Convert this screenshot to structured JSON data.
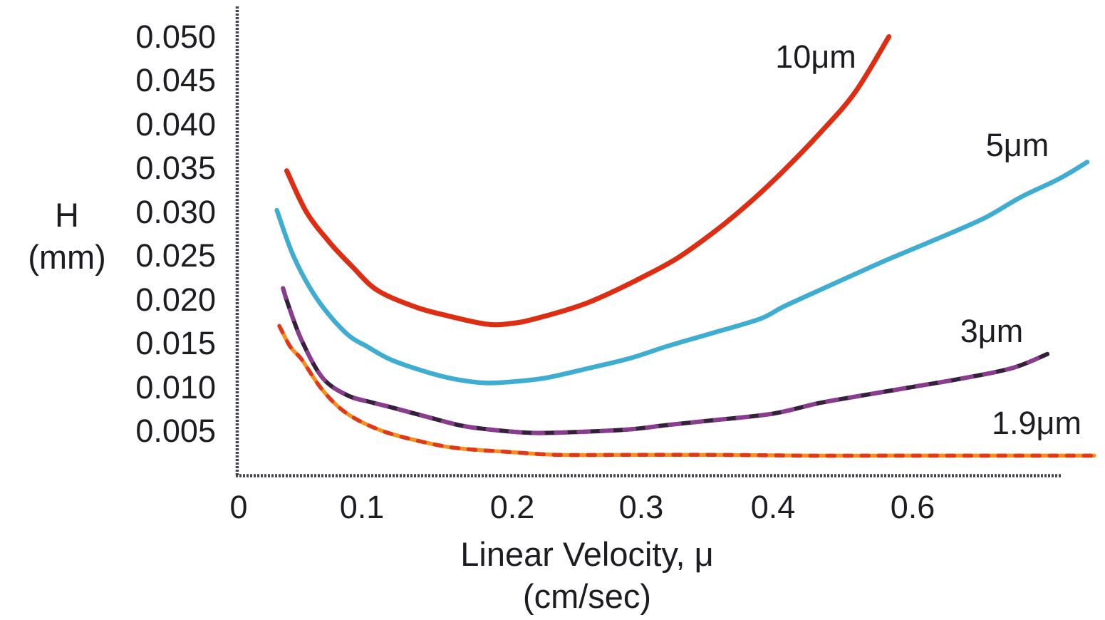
{
  "chart": {
    "y_axis_title_line1": "H",
    "y_axis_title_line2": "(mm)",
    "x_axis_title_line1": "Linear Velocity, μ",
    "x_axis_title_line2": "(cm/sec)",
    "y_tick_labels": [
      "0.050",
      "0.045",
      "0.040",
      "0.035",
      "0.030",
      "0.025",
      "0.020",
      "0.015",
      "0.010",
      "0.005"
    ],
    "x_tick_labels": [
      "0",
      "0.1",
      "0.2",
      "0.3",
      "0.4",
      "0.6"
    ]
  },
  "colors": {
    "background": "#ffffff",
    "text": "#1c1c22",
    "axis": "#46434e",
    "curve_10um": "#dd2d13",
    "curve_5um": "#3fadd2",
    "curve_3um": "#35203c",
    "curve_3um_dash": "#8a3d8f",
    "curve_1_9um": "#f39020",
    "curve_1_9um_dash": "#e0391a"
  },
  "chart_data": {
    "type": "line",
    "title": "",
    "xlabel": "Linear Velocity, μ (cm/sec)",
    "ylabel": "H (mm)",
    "x_tick_values": [
      0,
      0.1,
      0.2,
      0.3,
      0.4,
      0.6
    ],
    "y_tick_values": [
      0.05,
      0.045,
      0.04,
      0.035,
      0.03,
      0.025,
      0.02,
      0.015,
      0.01,
      0.005
    ],
    "xlim": [
      0,
      0.88
    ],
    "ylim": [
      0,
      0.053
    ],
    "grid": false,
    "legend_position": "inline-curve-labels",
    "series": [
      {
        "name": "10μm",
        "key": "curve-10um",
        "color": "#dd2d13",
        "line_width": 7,
        "points": [
          [
            0.039,
            0.0347
          ],
          [
            0.055,
            0.03
          ],
          [
            0.074,
            0.0265
          ],
          [
            0.092,
            0.0238
          ],
          [
            0.11,
            0.0211
          ],
          [
            0.135,
            0.0192
          ],
          [
            0.156,
            0.0182
          ],
          [
            0.183,
            0.0172
          ],
          [
            0.2,
            0.0173
          ],
          [
            0.217,
            0.0178
          ],
          [
            0.25,
            0.0192
          ],
          [
            0.272,
            0.0205
          ],
          [
            0.3,
            0.0225
          ],
          [
            0.327,
            0.0247
          ],
          [
            0.355,
            0.0277
          ],
          [
            0.381,
            0.0309
          ],
          [
            0.415,
            0.0347
          ],
          [
            0.466,
            0.0389
          ],
          [
            0.517,
            0.0436
          ],
          [
            0.566,
            0.05
          ]
        ]
      },
      {
        "name": "5μm",
        "key": "curve-5um",
        "color": "#3fadd2",
        "line_width": 6.5,
        "points": [
          [
            0.031,
            0.0302
          ],
          [
            0.045,
            0.0248
          ],
          [
            0.064,
            0.02
          ],
          [
            0.087,
            0.0162
          ],
          [
            0.104,
            0.0146
          ],
          [
            0.12,
            0.0131
          ],
          [
            0.144,
            0.0117
          ],
          [
            0.163,
            0.0109
          ],
          [
            0.183,
            0.0105
          ],
          [
            0.205,
            0.0107
          ],
          [
            0.227,
            0.0111
          ],
          [
            0.26,
            0.0122
          ],
          [
            0.291,
            0.0133
          ],
          [
            0.32,
            0.0147
          ],
          [
            0.352,
            0.0161
          ],
          [
            0.39,
            0.0178
          ],
          [
            0.415,
            0.0192
          ],
          [
            0.47,
            0.0212
          ],
          [
            0.517,
            0.0229
          ],
          [
            0.565,
            0.0246
          ],
          [
            0.616,
            0.0263
          ],
          [
            0.7,
            0.0292
          ],
          [
            0.755,
            0.0317
          ],
          [
            0.81,
            0.0338
          ],
          [
            0.85,
            0.0357
          ]
        ]
      },
      {
        "name": "3μm",
        "key": "curve-3um",
        "color": "#35203c",
        "dash_color": "#8a3d8f",
        "dash_pattern": "14 18",
        "line_width": 6,
        "points": [
          [
            0.036,
            0.0213
          ],
          [
            0.04,
            0.0195
          ],
          [
            0.051,
            0.0154
          ],
          [
            0.068,
            0.0111
          ],
          [
            0.088,
            0.0091
          ],
          [
            0.106,
            0.0083
          ],
          [
            0.12,
            0.0077
          ],
          [
            0.144,
            0.0066
          ],
          [
            0.167,
            0.0056
          ],
          [
            0.19,
            0.0051
          ],
          [
            0.217,
            0.0048
          ],
          [
            0.25,
            0.0049
          ],
          [
            0.291,
            0.0052
          ],
          [
            0.32,
            0.0057
          ],
          [
            0.352,
            0.0062
          ],
          [
            0.4,
            0.007
          ],
          [
            0.466,
            0.0082
          ],
          [
            0.53,
            0.0091
          ],
          [
            0.604,
            0.0101
          ],
          [
            0.67,
            0.011
          ],
          [
            0.743,
            0.0122
          ],
          [
            0.793,
            0.0138
          ]
        ]
      },
      {
        "name": "1.9μm",
        "key": "curve-1-9um",
        "color": "#f39020",
        "dash_color": "#e0391a",
        "dash_pattern": "10 14",
        "line_width": 5.5,
        "points": [
          [
            0.033,
            0.017
          ],
          [
            0.042,
            0.0146
          ],
          [
            0.051,
            0.0132
          ],
          [
            0.068,
            0.0097
          ],
          [
            0.088,
            0.007
          ],
          [
            0.114,
            0.005
          ],
          [
            0.145,
            0.0036
          ],
          [
            0.167,
            0.003
          ],
          [
            0.2,
            0.0026
          ],
          [
            0.235,
            0.0023
          ],
          [
            0.29,
            0.0023
          ],
          [
            0.352,
            0.0023
          ],
          [
            0.45,
            0.0022
          ],
          [
            0.55,
            0.0022
          ],
          [
            0.65,
            0.0022
          ],
          [
            0.75,
            0.0022
          ],
          [
            0.86,
            0.0022
          ]
        ]
      }
    ]
  }
}
